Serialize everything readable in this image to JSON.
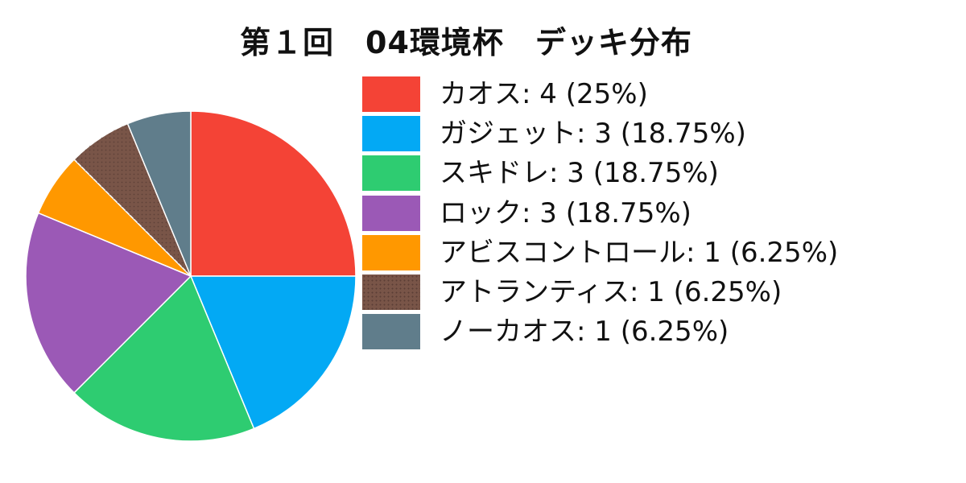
{
  "chart_data": {
    "type": "pie",
    "title": "第１回　04環境杯　デッキ分布",
    "legend_position": "right",
    "slices": [
      {
        "name": "カオス",
        "value": 4,
        "percent": "25%",
        "color": "#f44336"
      },
      {
        "name": "ガジェット",
        "value": 3,
        "percent": "18.75%",
        "color": "#03a9f4"
      },
      {
        "name": "スキドレ",
        "value": 3,
        "percent": "18.75%",
        "color": "#2ecc71"
      },
      {
        "name": "ロック",
        "value": 3,
        "percent": "18.75%",
        "color": "#9b59b6"
      },
      {
        "name": "アビスコントロール",
        "value": 1,
        "percent": "6.25%",
        "color": "#ff9800"
      },
      {
        "name": "アトランティス",
        "value": 1,
        "percent": "6.25%",
        "color": "#795548"
      },
      {
        "name": "ノーカオス",
        "value": 1,
        "percent": "6.25%",
        "color": "#607d8b"
      }
    ]
  }
}
